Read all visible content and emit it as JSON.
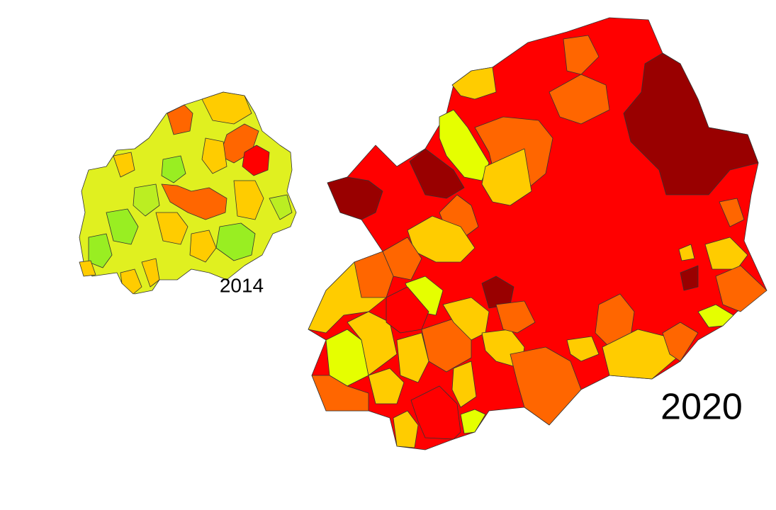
{
  "maps": [
    {
      "label": "2014"
    },
    {
      "label": "2020"
    }
  ]
}
